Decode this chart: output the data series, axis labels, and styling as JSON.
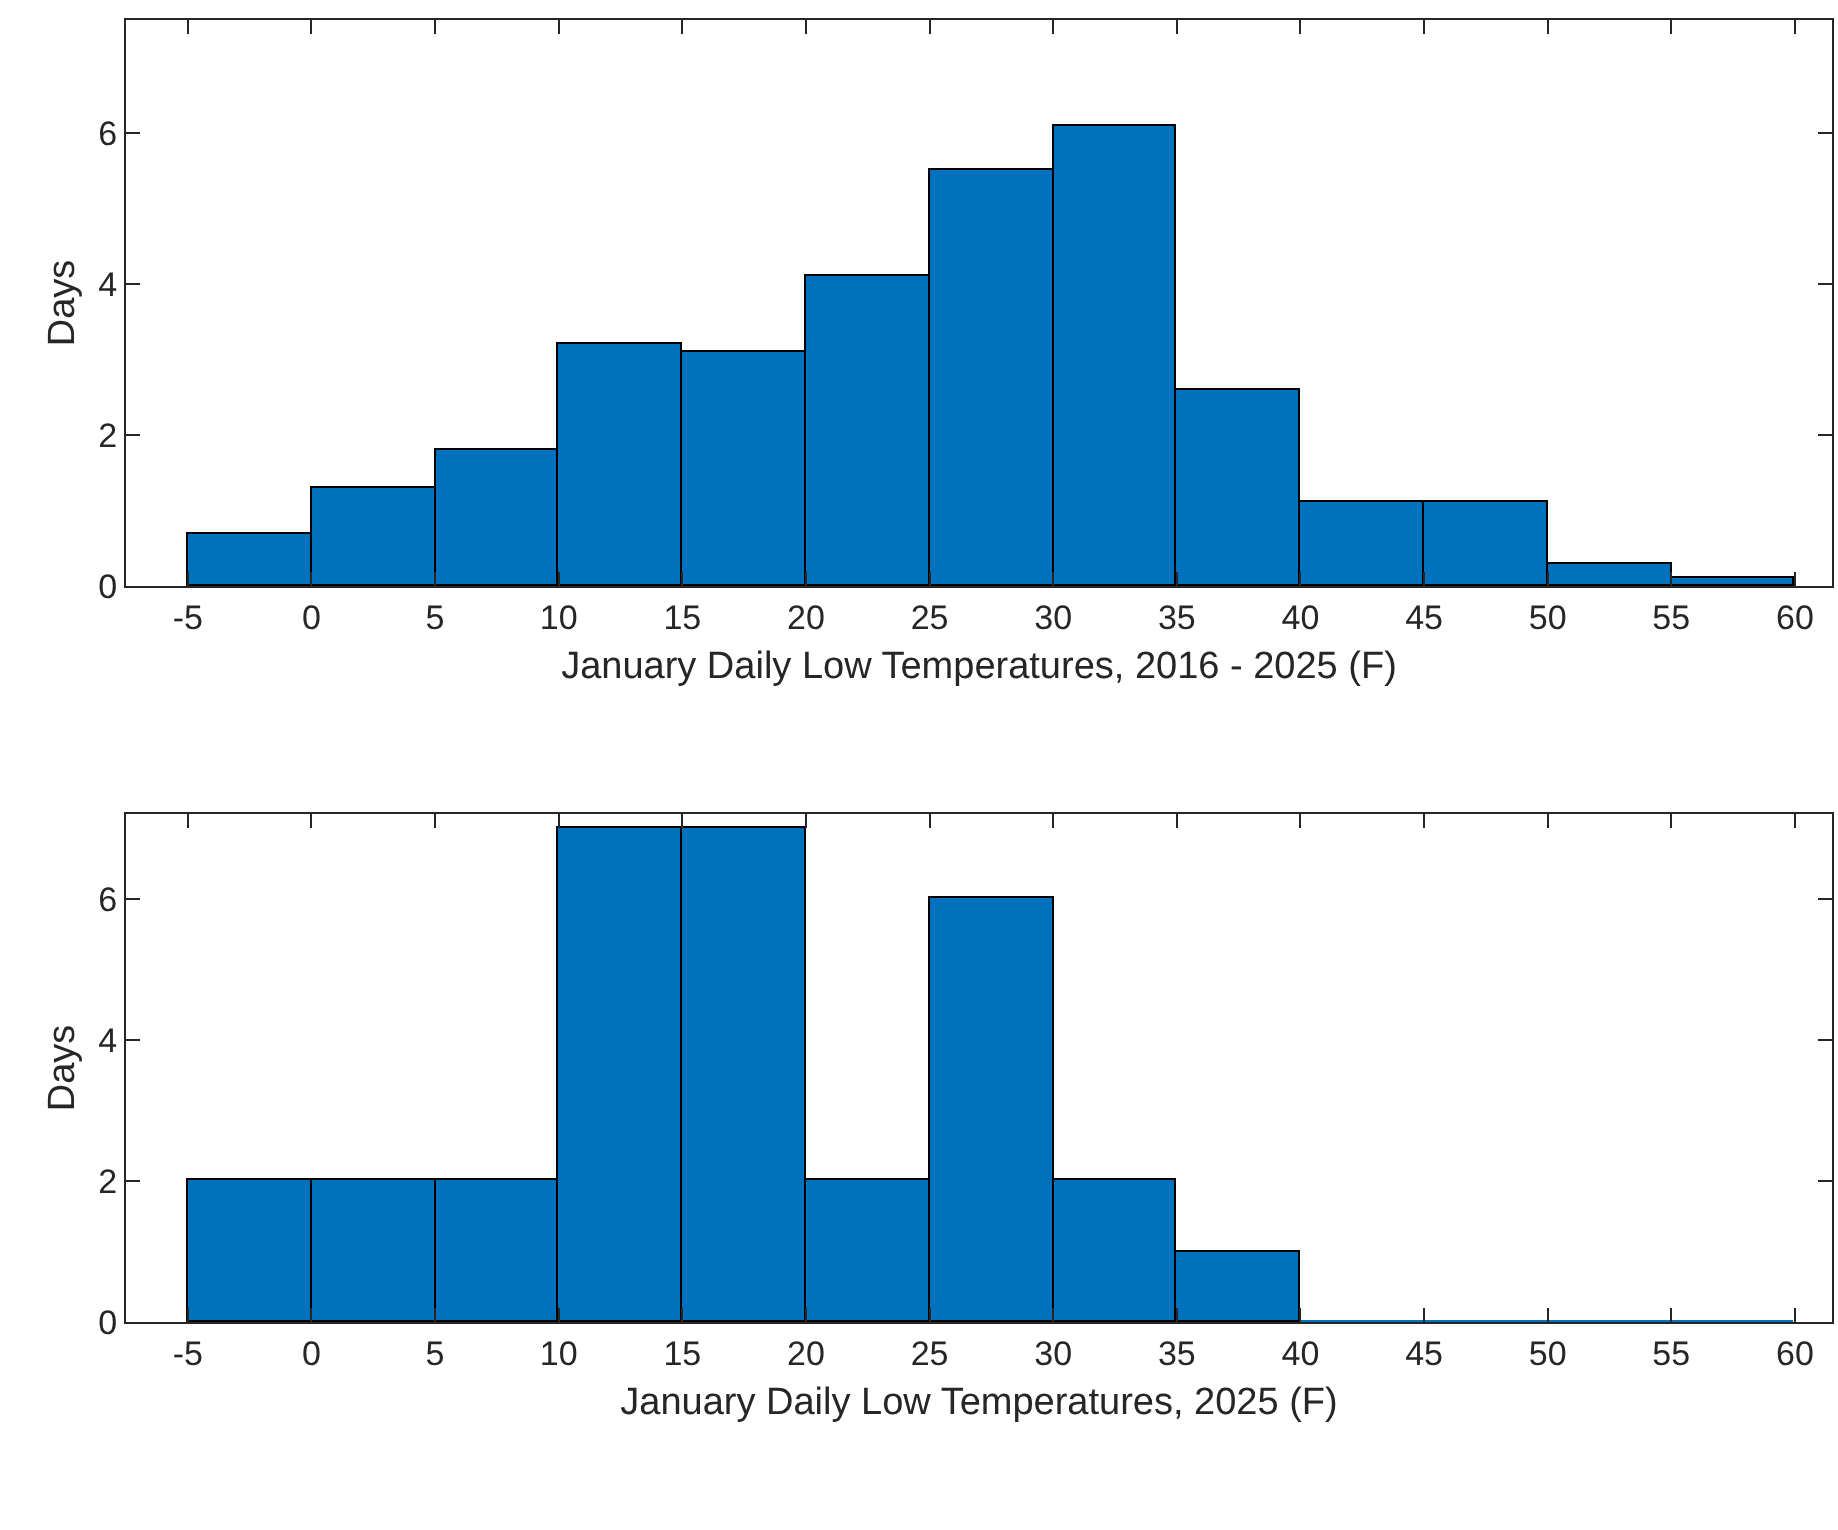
{
  "chart_data": [
    {
      "type": "histogram",
      "xlabel": "January Daily Low Temperatures, 2016 - 2025 (F)",
      "ylabel": "Days",
      "bins": [
        -5,
        0,
        5,
        10,
        15,
        20,
        25,
        30,
        35,
        40,
        45,
        50,
        55,
        60
      ],
      "values": [
        0.7,
        1.3,
        1.8,
        3.2,
        3.1,
        4.1,
        5.5,
        6.1,
        2.6,
        1.1,
        1.1,
        0.3,
        0.1
      ],
      "color": "#0072bd",
      "xlim": [
        -7.5,
        61.5
      ],
      "xticks": [
        -5,
        0,
        5,
        10,
        15,
        20,
        25,
        30,
        35,
        40,
        45,
        50,
        55,
        60
      ],
      "ylim": [
        0,
        7.5
      ],
      "yticks": [
        0,
        2,
        4,
        6
      ],
      "grid": false
    },
    {
      "type": "histogram",
      "xlabel": "January Daily Low Temperatures, 2025 (F)",
      "ylabel": "Days",
      "bins": [
        -5,
        0,
        5,
        10,
        15,
        20,
        25,
        30,
        35,
        40,
        45,
        50,
        55,
        60
      ],
      "values": [
        2,
        2,
        2,
        7,
        7,
        2,
        6,
        2,
        1,
        0,
        0,
        0,
        0
      ],
      "color": "#0072bd",
      "xlim": [
        -7.5,
        61.5
      ],
      "xticks": [
        -5,
        0,
        5,
        10,
        15,
        20,
        25,
        30,
        35,
        40,
        45,
        50,
        55,
        60
      ],
      "ylim": [
        0,
        7.2
      ],
      "yticks": [
        0,
        2,
        4,
        6
      ],
      "grid": false
    }
  ]
}
